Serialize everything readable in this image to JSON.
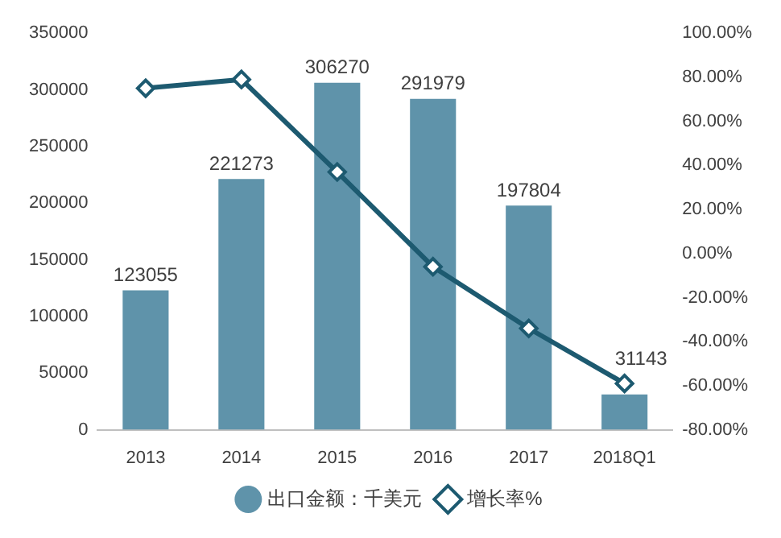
{
  "chart_data": {
    "type": "bar",
    "categories": [
      "2013",
      "2014",
      "2015",
      "2016",
      "2017",
      "2018Q1"
    ],
    "series": [
      {
        "name": "出口金额：千美元",
        "type": "bar",
        "color": "#5f93aa",
        "values": [
          123055,
          221273,
          306270,
          291979,
          197804,
          31143
        ],
        "value_labels": [
          "123055",
          "221273",
          "306270",
          "291979",
          "197804",
          "31143"
        ]
      },
      {
        "name": "增长率%",
        "type": "line",
        "axis": "y2",
        "color": "#1d5a70",
        "values": [
          75,
          79,
          37,
          -6,
          -34,
          -59
        ]
      }
    ],
    "ylim": [
      0,
      350000
    ],
    "yticks": [
      0,
      50000,
      100000,
      150000,
      200000,
      250000,
      300000,
      350000
    ],
    "y2lim": [
      -80,
      100
    ],
    "y2ticks": [
      {
        "value": -80,
        "label": "-80.00%"
      },
      {
        "value": -60,
        "label": "-60.00%"
      },
      {
        "value": -40,
        "label": "-40.00%"
      },
      {
        "value": -20,
        "label": "-20.00%"
      },
      {
        "value": 0,
        "label": "0.00%"
      },
      {
        "value": 20,
        "label": "20.00%"
      },
      {
        "value": 40,
        "label": "40.00%"
      },
      {
        "value": 60,
        "label": "60.00%"
      },
      {
        "value": 80,
        "label": "80.00%"
      },
      {
        "value": 100,
        "label": "100.00%"
      }
    ],
    "legend": "bottom",
    "marker": "diamond",
    "line_style": "solid",
    "grid": false
  }
}
